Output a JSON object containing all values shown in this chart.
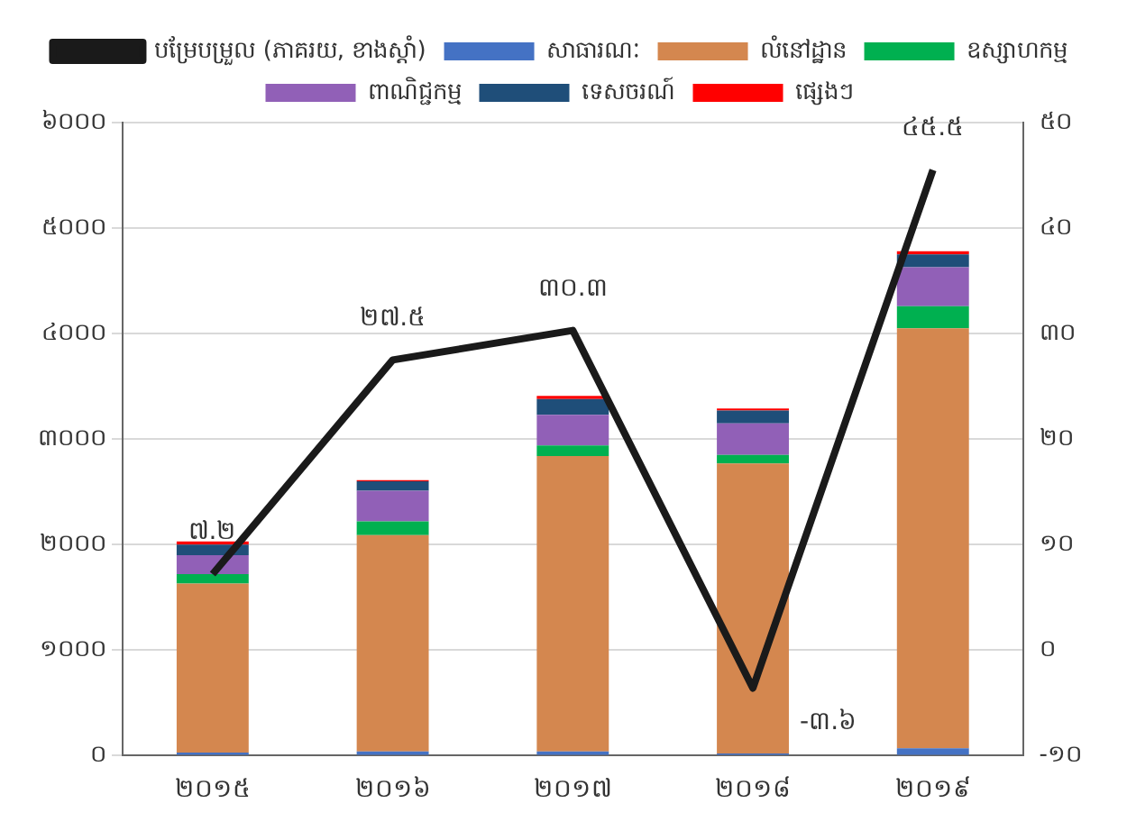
{
  "chart_data": {
    "type": "bar",
    "stacked": true,
    "categories": [
      "២០១៥",
      "២០១៦",
      "២០១៧",
      "២០១៨",
      "២០១៩"
    ],
    "series": [
      {
        "name": "សាធារណៈ",
        "color": "#4472c4",
        "values": [
          30,
          40,
          40,
          20,
          70
        ]
      },
      {
        "name": "លំនៅដ្ឋាន",
        "color": "#d4874f",
        "values": [
          1600,
          2050,
          2800,
          2750,
          3980
        ]
      },
      {
        "name": "ឧស្សាហកម្ម",
        "color": "#00b050",
        "values": [
          90,
          130,
          100,
          80,
          210
        ]
      },
      {
        "name": "ពាណិជ្ជកម្ម",
        "color": "#9160b7",
        "values": [
          180,
          290,
          290,
          300,
          370
        ]
      },
      {
        "name": "ទេសចរណ៍",
        "color": "#1f4e79",
        "values": [
          100,
          90,
          150,
          120,
          120
        ]
      },
      {
        "name": "ផ្សេងៗ",
        "color": "#ff0000",
        "values": [
          30,
          10,
          30,
          20,
          30
        ]
      },
      {
        "name": "បម្រែបម្រួល (ភាគរយ, ខាងស្តាំ)",
        "type": "line",
        "axis": "y2",
        "color": "#1a1a1a",
        "values": [
          7.2,
          27.5,
          30.3,
          -3.6,
          45.5
        ],
        "value_labels": [
          "៧.២",
          "២៧.៥",
          "៣០.៣",
          "-៣.៦",
          "៤៥.៥"
        ]
      }
    ],
    "ylim": [
      0,
      6000
    ],
    "yticks": [
      {
        "value": 0,
        "label": "០"
      },
      {
        "value": 1000,
        "label": "១០០០"
      },
      {
        "value": 2000,
        "label": "២០០០"
      },
      {
        "value": 3000,
        "label": "៣០០០"
      },
      {
        "value": 4000,
        "label": "៤០០០"
      },
      {
        "value": 5000,
        "label": "៥០០០"
      },
      {
        "value": 6000,
        "label": "៦០០០"
      }
    ],
    "y2lim": [
      -10,
      50
    ],
    "y2ticks": [
      {
        "value": -10,
        "label": "-១០"
      },
      {
        "value": 0,
        "label": "០"
      },
      {
        "value": 10,
        "label": "១០"
      },
      {
        "value": 20,
        "label": "២០"
      },
      {
        "value": 30,
        "label": "៣០"
      },
      {
        "value": 40,
        "label": "៤០"
      },
      {
        "value": 50,
        "label": "៥០"
      }
    ],
    "grid": "y",
    "legend": "top"
  }
}
